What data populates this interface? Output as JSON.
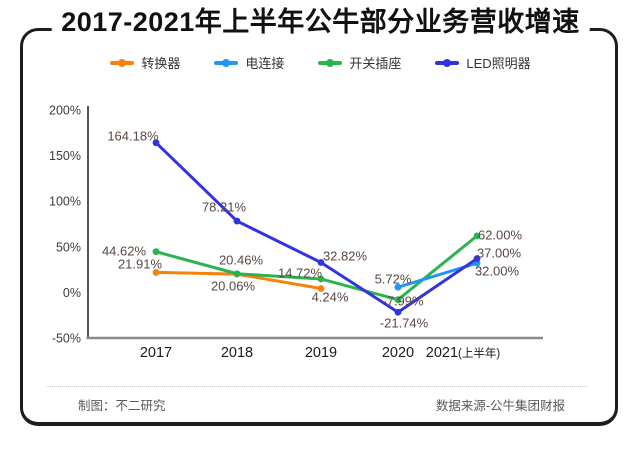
{
  "title": "2017-2021年上半年公牛部分业务营收增速",
  "chart_data": {
    "type": "line",
    "categories": [
      "2017",
      "2018",
      "2019",
      "2020",
      "2021(上半年)"
    ],
    "series": [
      {
        "name": "转换器",
        "color": "#f5820b",
        "values": [
          21.91,
          20.06,
          4.24,
          null,
          null
        ]
      },
      {
        "name": "电连接",
        "color": "#2196f3",
        "values": [
          null,
          null,
          null,
          5.72,
          32.0
        ]
      },
      {
        "name": "开关插座",
        "color": "#2bb44e",
        "values": [
          44.62,
          20.46,
          14.72,
          -7.99,
          62.0
        ]
      },
      {
        "name": "LED照明器",
        "color": "#3333e0",
        "values": [
          164.18,
          78.21,
          32.82,
          -21.74,
          37.0
        ]
      }
    ],
    "ylim": [
      -50,
      200
    ],
    "yticks": [
      200,
      150,
      100,
      50,
      0,
      -50
    ],
    "ytick_suffix": "%",
    "grid": false,
    "legend_position": "top",
    "data_label_format": "0.00%",
    "data_label_color": "#5a4743"
  },
  "footer": {
    "left": "制图：不二研究",
    "right": "数据来源-公牛集团财报"
  }
}
